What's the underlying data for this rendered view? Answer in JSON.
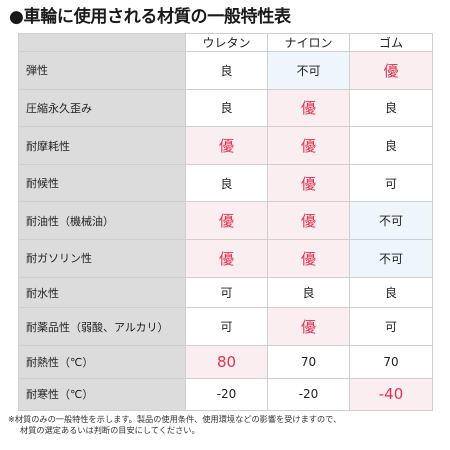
{
  "title": "●車輪に使用される材質の一般特性表",
  "table": {
    "columns": [
      "ウレタン",
      "ナイロン",
      "ゴム"
    ],
    "rows": [
      {
        "label": "弾性",
        "values": [
          "良",
          "不可",
          "優"
        ]
      },
      {
        "label": "圧縮永久歪み",
        "values": [
          "良",
          "優",
          "良"
        ]
      },
      {
        "label": "耐摩耗性",
        "values": [
          "優",
          "優",
          "良"
        ]
      },
      {
        "label": "耐候性",
        "values": [
          "良",
          "優",
          "可"
        ]
      },
      {
        "label": "耐油性（機械油）",
        "values": [
          "優",
          "優",
          "不可"
        ]
      },
      {
        "label": "耐ガソリン性",
        "values": [
          "優",
          "優",
          "不可"
        ]
      },
      {
        "label": "耐水性",
        "values": [
          "可",
          "良",
          "良"
        ]
      },
      {
        "label": "耐薬品性（弱酸、アルカリ）",
        "values": [
          "可",
          "優",
          "可"
        ]
      },
      {
        "label": "耐熱性（℃）",
        "values": [
          "80",
          "70",
          "70"
        ]
      },
      {
        "label": "耐寒性（℃）",
        "values": [
          "-20",
          "-20",
          "-40"
        ]
      }
    ],
    "highlighted_cells": [
      [
        0,
        2
      ],
      [
        1,
        1
      ],
      [
        2,
        0
      ],
      [
        2,
        1
      ],
      [
        3,
        1
      ],
      [
        4,
        0
      ],
      [
        4,
        1
      ],
      [
        5,
        0
      ],
      [
        5,
        1
      ],
      [
        7,
        1
      ],
      [
        8,
        0
      ],
      [
        9,
        2
      ]
    ],
    "shaded_cells": [
      [
        0,
        1
      ],
      [
        4,
        2
      ],
      [
        5,
        2
      ]
    ]
  },
  "note": {
    "line1": "※材質のみの一般特性を示します。製品の使用条件、使用環境などの影響を受けますので、",
    "line2": "材質の選定あるいは判断の目安にしてください。"
  },
  "colors": {
    "header_bg": "#dcdcdc",
    "highlight_bg": "#fbeef1",
    "highlight_text": "#e4324f",
    "shaded_bg": "#eef6fc"
  }
}
